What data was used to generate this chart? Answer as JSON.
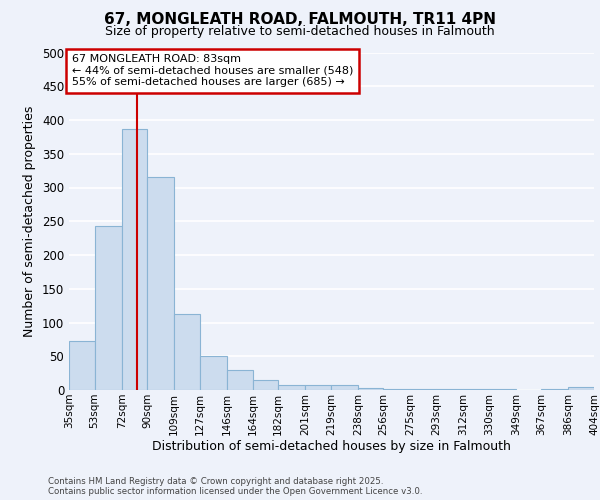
{
  "title1": "67, MONGLEATH ROAD, FALMOUTH, TR11 4PN",
  "title2": "Size of property relative to semi-detached houses in Falmouth",
  "xlabel": "Distribution of semi-detached houses by size in Falmouth",
  "ylabel": "Number of semi-detached properties",
  "footer1": "Contains HM Land Registry data © Crown copyright and database right 2025.",
  "footer2": "Contains public sector information licensed under the Open Government Licence v3.0.",
  "annotation_line1": "67 MONGLEATH ROAD: 83sqm",
  "annotation_line2": "← 44% of semi-detached houses are smaller (548)",
  "annotation_line3": "55% of semi-detached houses are larger (685) →",
  "bar_left_edges": [
    35,
    53,
    72,
    90,
    109,
    127,
    146,
    164,
    182,
    201,
    219,
    238,
    256,
    275,
    293,
    312,
    330,
    349,
    367,
    386
  ],
  "bar_widths": [
    18,
    19,
    18,
    19,
    18,
    19,
    18,
    18,
    19,
    18,
    19,
    18,
    19,
    18,
    19,
    18,
    19,
    18,
    19,
    18
  ],
  "bar_heights": [
    72,
    243,
    387,
    315,
    113,
    50,
    30,
    15,
    7,
    8,
    8,
    3,
    2,
    1,
    2,
    1,
    1,
    0,
    1,
    4
  ],
  "tick_labels": [
    "35sqm",
    "53sqm",
    "72sqm",
    "90sqm",
    "109sqm",
    "127sqm",
    "146sqm",
    "164sqm",
    "182sqm",
    "201sqm",
    "219sqm",
    "238sqm",
    "256sqm",
    "275sqm",
    "293sqm",
    "312sqm",
    "330sqm",
    "349sqm",
    "367sqm",
    "386sqm",
    "404sqm"
  ],
  "tick_positions": [
    35,
    53,
    72,
    90,
    109,
    127,
    146,
    164,
    182,
    201,
    219,
    238,
    256,
    275,
    293,
    312,
    330,
    349,
    367,
    386,
    404
  ],
  "bar_color": "#ccdcee",
  "bar_edge_color": "#8ab4d4",
  "vline_x": 83,
  "vline_color": "#cc0000",
  "ylim": [
    0,
    500
  ],
  "xlim": [
    35,
    404
  ],
  "background_color": "#eef2fa",
  "plot_bg_color": "#eef2fa",
  "grid_color": "#ffffff",
  "annotation_box_color": "#cc0000",
  "annotation_bg": "#ffffff",
  "yticks": [
    0,
    50,
    100,
    150,
    200,
    250,
    300,
    350,
    400,
    450,
    500
  ]
}
